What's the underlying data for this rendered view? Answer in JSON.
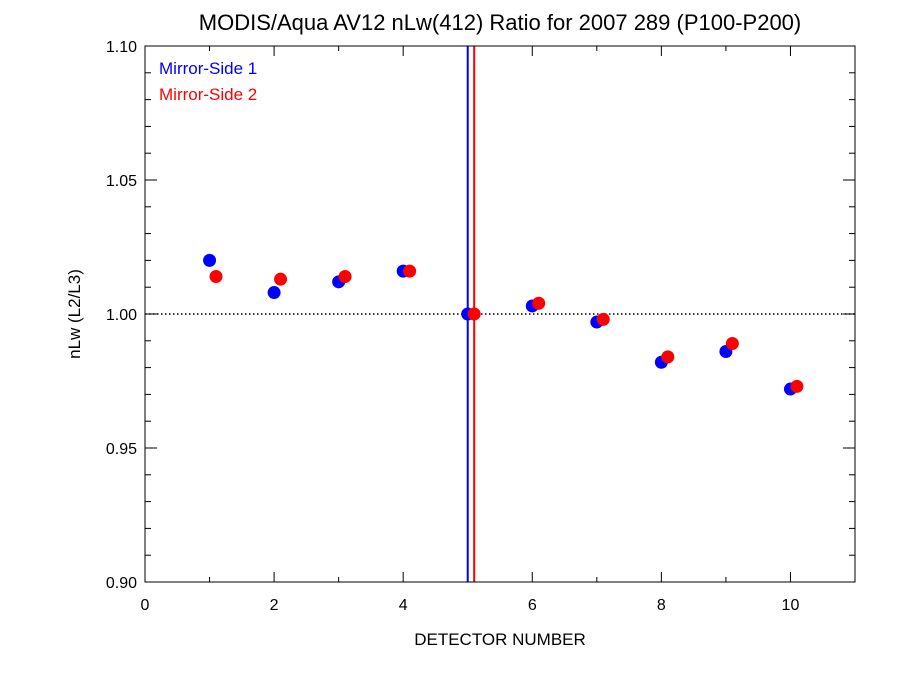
{
  "chart_data": {
    "type": "scatter",
    "title": "MODIS/Aqua AV12 nLw(412) Ratio for 2007 289 (P100-P200)",
    "xlabel": "DETECTOR NUMBER",
    "ylabel": "nLw (L2/L3)",
    "xlim": [
      0,
      11
    ],
    "ylim": [
      0.9,
      1.1
    ],
    "x_ticks": [
      0,
      2,
      4,
      6,
      8,
      10
    ],
    "x_tick_labels": [
      "0",
      "2",
      "4",
      "6",
      "8",
      "10"
    ],
    "y_ticks": [
      0.9,
      0.95,
      1.0,
      1.05,
      1.1
    ],
    "y_tick_labels": [
      "0.90",
      "0.95",
      "1.00",
      "1.05",
      "1.10"
    ],
    "reference_line": {
      "y": 1.0,
      "style": "dotted",
      "color": "#000000"
    },
    "vertical_lines": [
      {
        "x": 5.0,
        "color": "#0000ff"
      },
      {
        "x": 5.1,
        "color": "#ff0000"
      }
    ],
    "legend_position": "top-left",
    "grid": false,
    "series": [
      {
        "name": "Mirror-Side 1",
        "color": "#0000ff",
        "x": [
          1,
          2,
          3,
          4,
          5,
          6,
          7,
          8,
          9,
          10
        ],
        "y": [
          1.02,
          1.008,
          1.012,
          1.016,
          1.0,
          1.003,
          0.997,
          0.982,
          0.986,
          0.972
        ]
      },
      {
        "name": "Mirror-Side 2",
        "color": "#ff0000",
        "x": [
          1.1,
          2.1,
          3.1,
          4.1,
          5.1,
          6.1,
          7.1,
          8.1,
          9.1,
          10.1
        ],
        "y": [
          1.014,
          1.013,
          1.014,
          1.016,
          1.0,
          1.004,
          0.998,
          0.984,
          0.989,
          0.973
        ]
      }
    ]
  }
}
